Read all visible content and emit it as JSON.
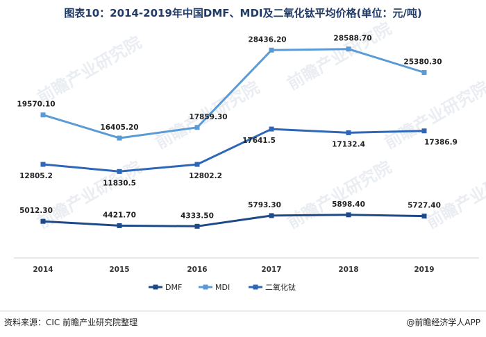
{
  "title": "图表10：2014-2019年中国DMF、MDI及二氧化钛平均价格(单位：元/吨)",
  "source": "资料来源：CIC 前瞻产业研究院整理",
  "brand": "@前瞻经济学人APP",
  "watermark": "前瞻产业研究院",
  "colors": {
    "DMF": "#1e4b87",
    "MDI": "#5b9bd5",
    "TiO2": "#2e67b8"
  },
  "chart_data": {
    "type": "line",
    "categories": [
      "2014",
      "2015",
      "2016",
      "2017",
      "2018",
      "2019"
    ],
    "series": [
      {
        "name": "DMF",
        "values": [
          5012.3,
          4421.7,
          4333.5,
          5793.3,
          5898.4,
          5727.4
        ],
        "labels": [
          "5012.30",
          "4421.70",
          "4333.50",
          "5793.30",
          "5898.40",
          "5727.40"
        ]
      },
      {
        "name": "MDI",
        "values": [
          19570.1,
          16405.2,
          17859.3,
          28436.2,
          28588.7,
          25380.3
        ],
        "labels": [
          "19570.10",
          "16405.20",
          "17859.30",
          "28436.20",
          "28588.70",
          "25380.30"
        ]
      },
      {
        "name": "二氧化钛",
        "values": [
          12805.2,
          11830.5,
          12802.2,
          17641.5,
          17132.4,
          17386.9
        ],
        "labels": [
          "12805.2",
          "11830.5",
          "12802.2",
          "17641.5",
          "17132.4",
          "17386.9"
        ]
      }
    ],
    "legend_position": "bottom-center",
    "grid": false
  }
}
